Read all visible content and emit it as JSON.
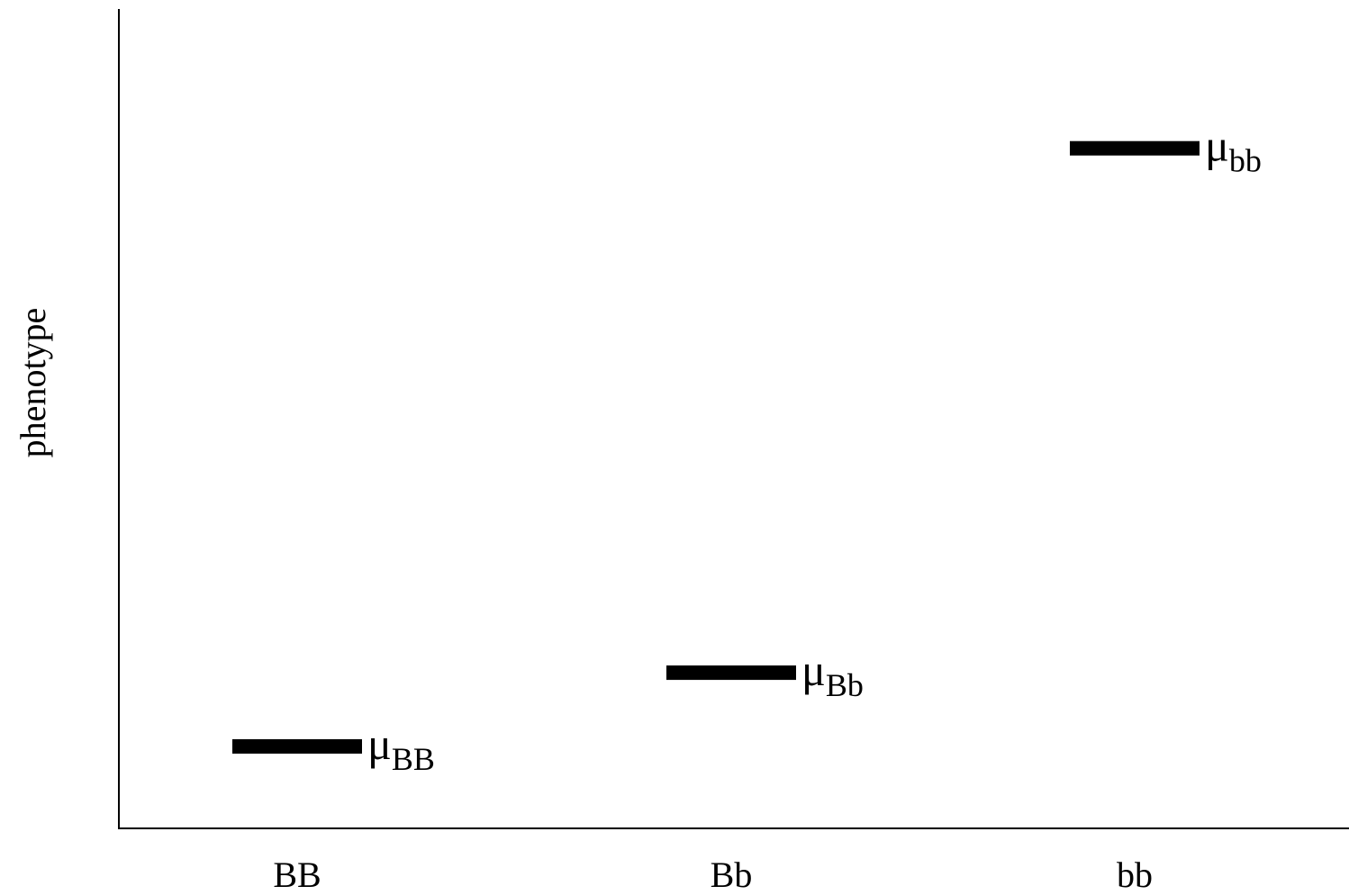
{
  "chart_data": {
    "type": "scatter",
    "xlabel": "",
    "ylabel": "phenotype",
    "categories": [
      "BB",
      "Bb",
      "bb"
    ],
    "series": [
      {
        "values": [
          0.1,
          0.19,
          0.83
        ],
        "labels": [
          {
            "symbol": "μ",
            "subscript": "BB"
          },
          {
            "symbol": "μ",
            "subscript": "Bb"
          },
          {
            "symbol": "μ",
            "subscript": "bb"
          }
        ]
      }
    ],
    "ylim": [
      0,
      1
    ],
    "y_ticks_shown": false,
    "grid": false,
    "legend": "none",
    "marker": "horizontal-bar",
    "colors": {
      "marker": "#000000",
      "axis": "#000000",
      "text": "#000000"
    }
  }
}
